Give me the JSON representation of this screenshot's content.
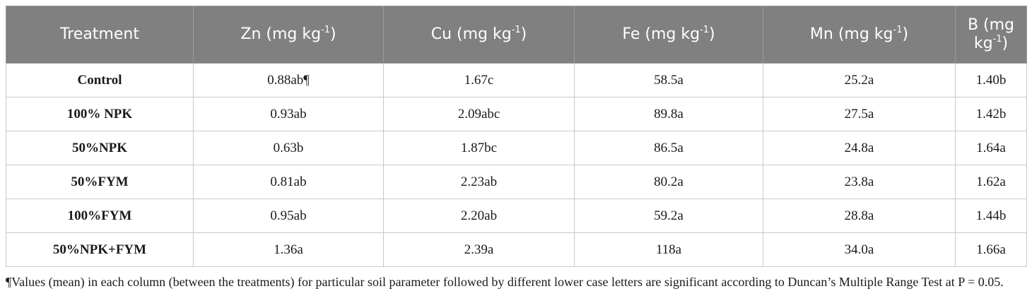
{
  "table": {
    "headers": [
      {
        "text": "Treatment",
        "sup": "",
        "tail": ""
      },
      {
        "text": "Zn (mg kg",
        "sup": "-1",
        "tail": ")"
      },
      {
        "text": "Cu (mg kg",
        "sup": "-1",
        "tail": ")"
      },
      {
        "text": "Fe (mg kg",
        "sup": "-1",
        "tail": ")"
      },
      {
        "text": "Mn (mg kg",
        "sup": "-1",
        "tail": ")"
      },
      {
        "text": "B (mg kg",
        "sup": "-1",
        "tail": ")"
      }
    ],
    "rows": [
      {
        "treatment": "Control",
        "zn": "0.88ab¶",
        "cu": "1.67c",
        "fe": "58.5a",
        "mn": "25.2a",
        "b": "1.40b"
      },
      {
        "treatment": "100% NPK",
        "zn": "0.93ab",
        "cu": "2.09abc",
        "fe": "89.8a",
        "mn": "27.5a",
        "b": "1.42b"
      },
      {
        "treatment": "50%NPK",
        "zn": "0.63b",
        "cu": "1.87bc",
        "fe": "86.5a",
        "mn": "24.8a",
        "b": "1.64a"
      },
      {
        "treatment": "50%FYM",
        "zn": "0.81ab",
        "cu": "2.23ab",
        "fe": "80.2a",
        "mn": "23.8a",
        "b": "1.62a"
      },
      {
        "treatment": "100%FYM",
        "zn": "0.95ab",
        "cu": "2.20ab",
        "fe": "59.2a",
        "mn": "28.8a",
        "b": "1.44b"
      },
      {
        "treatment": "50%NPK+FYM",
        "zn": "1.36a",
        "cu": "2.39a",
        "fe": "118a",
        "mn": "34.0a",
        "b": "1.66a"
      }
    ]
  },
  "footnote": "¶Values (mean) in each column (between the treatments) for particular soil parameter followed by different lower case letters are significant according to Duncan’s Multiple Range Test at P = 0.05."
}
